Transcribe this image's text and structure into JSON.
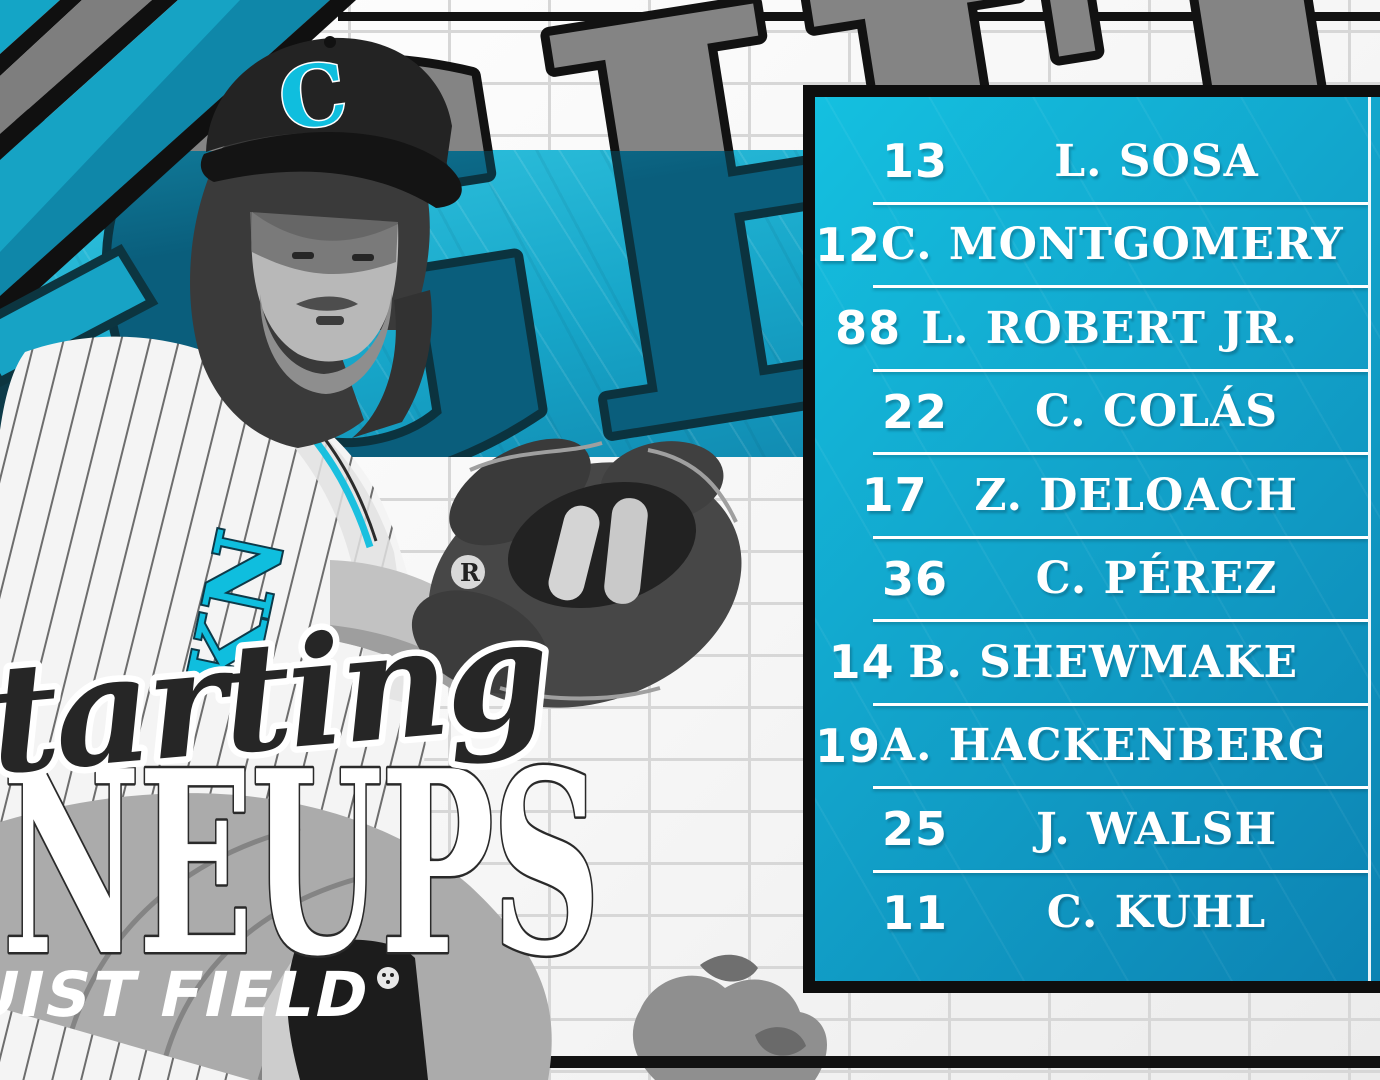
{
  "background": {
    "word": "KNIGHTS",
    "grid_style": "white-graph-grid"
  },
  "titles": {
    "script": "Starting",
    "main": "LINEUPS",
    "venue": "TRUIST FIELD"
  },
  "player": {
    "cap_logo_letter": "C",
    "jersey_letters": "KN",
    "glove_logo_letter": "R"
  },
  "lineup": {
    "rows": [
      {
        "number": "13",
        "name": "L. SOSA"
      },
      {
        "number": "12",
        "name": "C. MONTGOMERY"
      },
      {
        "number": "88",
        "name": "L. ROBERT JR."
      },
      {
        "number": "22",
        "name": "C. COLÁS"
      },
      {
        "number": "17",
        "name": "Z. DELOACH"
      },
      {
        "number": "36",
        "name": "C. PÉREZ"
      },
      {
        "number": "14",
        "name": "B. SHEWMAKE"
      },
      {
        "number": "19",
        "name": "A. HACKENBERG"
      },
      {
        "number": "25",
        "name": "J. WALSH"
      },
      {
        "number": "11",
        "name": "C. KUHL"
      }
    ]
  },
  "colors": {
    "accent": "#0fbede",
    "band_top": "#33c6e1",
    "band_bottom": "#0d7ba3",
    "panel_top": "#14c0e0",
    "panel_bottom": "#0c82b2",
    "ink": "#121212",
    "teal_dark": "#0b333f",
    "gray_letter": "#848484"
  }
}
